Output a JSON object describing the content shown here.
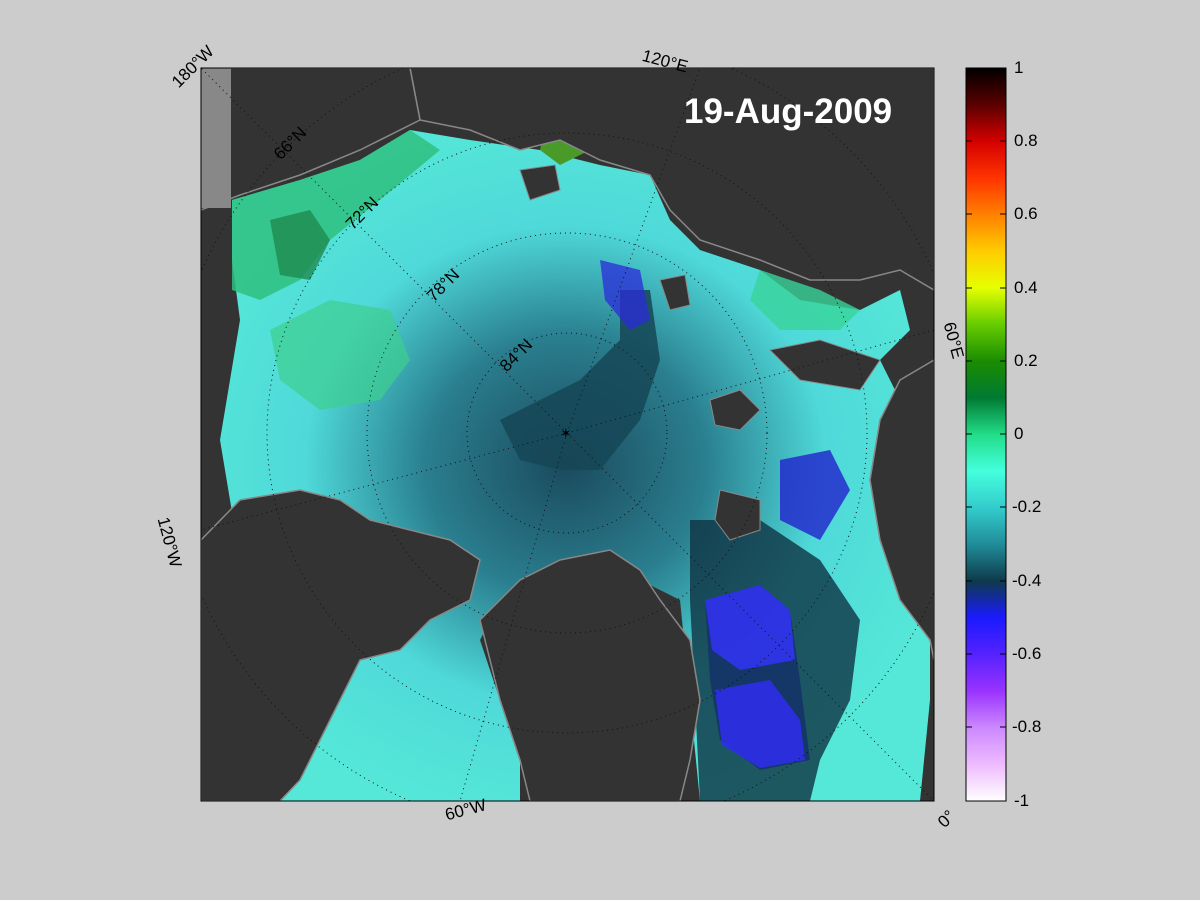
{
  "map": {
    "date": "19-Aug-2009",
    "lon_labels": [
      "180°W",
      "120°E",
      "120°W",
      "60°E",
      "60°W",
      "0°"
    ],
    "lat_labels": [
      "66°N",
      "72°N",
      "78°N",
      "84°N"
    ]
  },
  "colorbar": {
    "ticks": [
      "1",
      "0.8",
      "0.6",
      "0.4",
      "0.2",
      "0",
      "-0.2",
      "-0.4",
      "-0.6",
      "-0.8",
      "-1"
    ],
    "range": [
      -1,
      1
    ]
  },
  "colors": {
    "background": "#cccccc",
    "land": "#333333",
    "land_edge": "#888888"
  }
}
